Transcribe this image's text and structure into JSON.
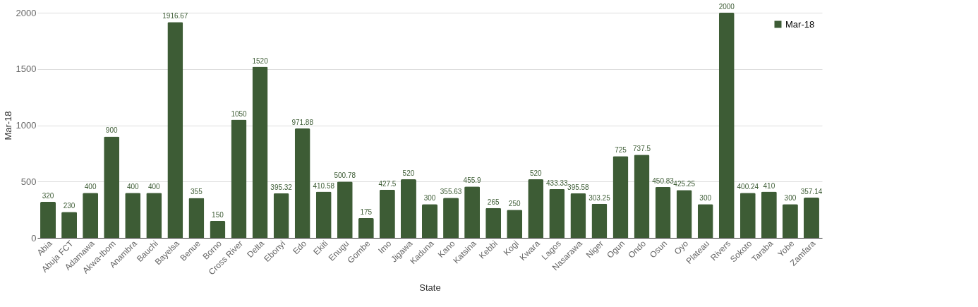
{
  "chart_data": {
    "type": "bar",
    "xlabel": "State",
    "ylabel": "Mar-18",
    "categories": [
      "Abia",
      "Abuja FCT",
      "Adamawa",
      "Akwa-Ibom",
      "Anambra",
      "Bauchi",
      "Bayelsa",
      "Benue",
      "Borno",
      "Cross River",
      "Delta",
      "Ebonyi",
      "Edo",
      "Ekiti",
      "Enugu",
      "Gombe",
      "Imo",
      "Jigawa",
      "Kaduna",
      "Kano",
      "Katsina",
      "Kebbi",
      "Kogi",
      "Kwara",
      "Lagos",
      "Nasarawa",
      "Niger",
      "Ogun",
      "Ondo",
      "Osun",
      "Oyo",
      "Plateau",
      "Rivers",
      "Sokoto",
      "Taraba",
      "Yobe",
      "Zamfara"
    ],
    "series": [
      {
        "name": "Mar-18",
        "color": "#3d5c35",
        "values": [
          320,
          230,
          400,
          900,
          400,
          400,
          1916.67,
          355,
          150,
          1050,
          1520,
          395.32,
          971.88,
          410.58,
          500.78,
          175,
          427.5,
          520,
          300,
          355.63,
          455.9,
          265,
          250,
          520,
          433.33,
          395.58,
          303.25,
          725,
          737.5,
          450.83,
          425.25,
          300,
          2000,
          400.24,
          410,
          300,
          357.14
        ]
      }
    ],
    "ylim": [
      0,
      2000
    ],
    "yticks": [
      0,
      500,
      1000,
      1500,
      2000
    ],
    "grid": "y",
    "legend": "top right",
    "data_labels": true
  }
}
